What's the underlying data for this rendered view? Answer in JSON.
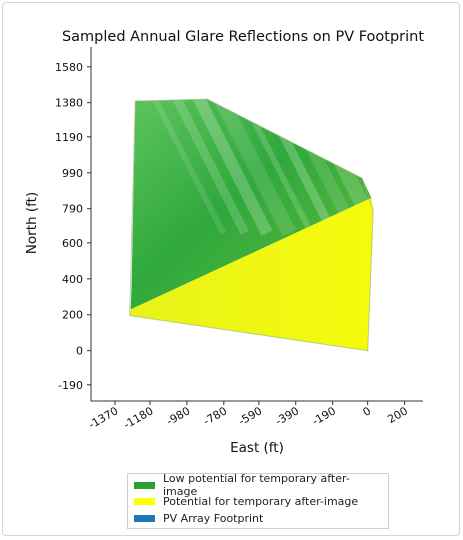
{
  "chart_data": {
    "type": "area",
    "title": "Sampled Annual Glare Reflections on PV Footprint",
    "xlabel": "East (ft)",
    "ylabel": "North (ft)",
    "x_ticks": [
      -1370,
      -1180,
      -980,
      -780,
      -590,
      -390,
      -190,
      0,
      200
    ],
    "y_ticks": [
      -190,
      0,
      200,
      400,
      600,
      790,
      990,
      1190,
      1380,
      1580
    ],
    "xlim": [
      -1500,
      300
    ],
    "ylim": [
      -280,
      1690
    ],
    "grid": false,
    "legend_position": "bottom",
    "footprint": {
      "name": "PV Array Footprint",
      "x": [
        -1260,
        -1210,
        -870,
        -30,
        30,
        0,
        -1290
      ],
      "y": [
        1390,
        1390,
        1400,
        960,
        780,
        0,
        195
      ]
    },
    "regions": [
      {
        "name": "Low potential for temporary after-image",
        "color": "#2ca02c",
        "x": [
          -1260,
          -1210,
          -870,
          -30,
          20,
          -1285,
          -1280
        ],
        "y": [
          1390,
          1390,
          1400,
          960,
          850,
          230,
          360
        ]
      },
      {
        "name": "Potential for temporary after-image",
        "color": "#ffff00",
        "x": [
          -1285,
          20,
          30,
          0,
          -1290
        ],
        "y": [
          230,
          850,
          780,
          0,
          195
        ]
      }
    ],
    "legend": [
      {
        "label": "Low potential for temporary after-image",
        "color": "#2ca02c"
      },
      {
        "label": "Potential for temporary after-image",
        "color": "#ffff00"
      },
      {
        "label": "PV Array Footprint",
        "color": "#1f77b4"
      }
    ]
  }
}
